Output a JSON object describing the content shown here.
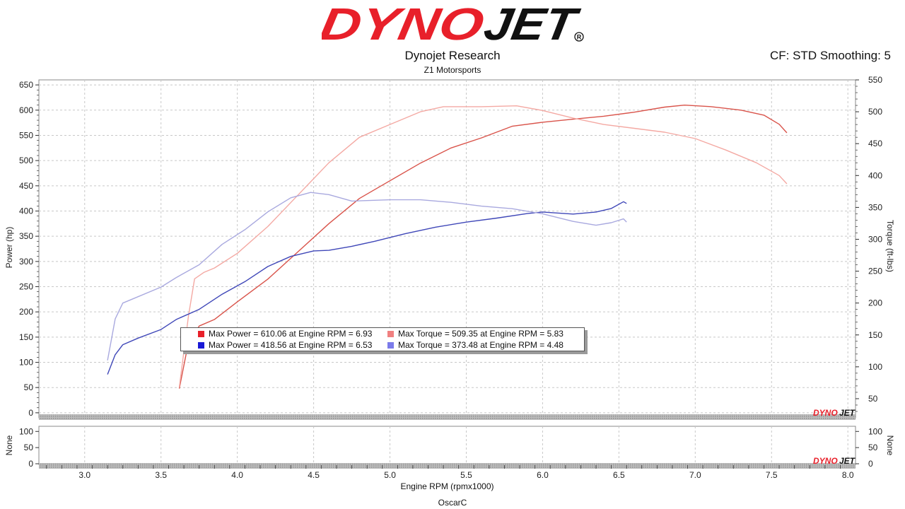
{
  "header": {
    "logo_text": "DYNOJET",
    "title": "Dynojet Research",
    "subtitle": "Z1 Motorsports",
    "correction": "CF: STD Smoothing: 5"
  },
  "footer": {
    "operator": "OscarC"
  },
  "colors": {
    "run1_power": "#d9534a",
    "run1_torque": "#f4a9a3",
    "run2_power": "#3f47b8",
    "run2_torque": "#a9a9df",
    "brand_red": "#e8202a"
  },
  "chart_data": [
    {
      "type": "line",
      "xlabel": "Engine RPM (rpmx1000)",
      "ylabel": "Power (hp)",
      "ylabel_right": "Torque (ft-lbs)",
      "xlim": [
        2.7,
        8.05
      ],
      "ylim": [
        -10,
        660
      ],
      "ylim_right": [
        20,
        550
      ],
      "x_ticks": [
        "3.0",
        "3.5",
        "4.0",
        "4.5",
        "5.0",
        "5.5",
        "6.0",
        "6.5",
        "7.0",
        "7.5",
        "8.0"
      ],
      "y_ticks": [
        "0",
        "50",
        "100",
        "150",
        "200",
        "250",
        "300",
        "350",
        "400",
        "450",
        "500",
        "550",
        "600",
        "650"
      ],
      "y_ticks_right": [
        "50",
        "100",
        "150",
        "200",
        "250",
        "300",
        "350",
        "400",
        "450",
        "500",
        "550"
      ],
      "grid": true,
      "series": [
        {
          "axis": "left",
          "x": [
            3.62,
            3.68,
            3.75,
            3.85,
            4.0,
            4.2,
            4.4,
            4.6,
            4.8,
            5.0,
            5.2,
            5.4,
            5.6,
            5.8,
            6.0,
            6.2,
            6.4,
            6.6,
            6.8,
            6.93,
            7.1,
            7.3,
            7.45,
            7.55,
            7.6
          ],
          "y": [
            48,
            140,
            172,
            185,
            220,
            265,
            320,
            375,
            425,
            460,
            495,
            525,
            545,
            568,
            576,
            582,
            588,
            596,
            606,
            610,
            607,
            600,
            590,
            572,
            555
          ]
        },
        {
          "axis": "right",
          "x": [
            3.62,
            3.68,
            3.72,
            3.78,
            3.85,
            4.0,
            4.2,
            4.4,
            4.6,
            4.8,
            5.0,
            5.2,
            5.35,
            5.6,
            5.83,
            6.0,
            6.2,
            6.4,
            6.6,
            6.8,
            7.0,
            7.2,
            7.4,
            7.55,
            7.6
          ],
          "y": [
            68,
            180,
            238,
            248,
            255,
            278,
            320,
            370,
            420,
            460,
            480,
            500,
            508,
            508,
            509.35,
            502,
            490,
            480,
            474,
            468,
            458,
            440,
            420,
            400,
            387
          ]
        },
        {
          "axis": "left",
          "x": [
            3.15,
            3.2,
            3.25,
            3.35,
            3.5,
            3.6,
            3.75,
            3.9,
            4.05,
            4.2,
            4.35,
            4.5,
            4.6,
            4.75,
            4.9,
            5.1,
            5.3,
            5.5,
            5.7,
            5.9,
            6.0,
            6.2,
            6.35,
            6.45,
            6.53,
            6.55
          ],
          "y": [
            76,
            115,
            135,
            148,
            165,
            185,
            205,
            235,
            260,
            290,
            310,
            321,
            322,
            330,
            340,
            355,
            368,
            378,
            386,
            395,
            398,
            394,
            398,
            405,
            418.56,
            415
          ]
        },
        {
          "axis": "right",
          "x": [
            3.15,
            3.2,
            3.25,
            3.3,
            3.5,
            3.6,
            3.75,
            3.9,
            4.05,
            4.2,
            4.35,
            4.48,
            4.6,
            4.75,
            5.0,
            5.2,
            5.4,
            5.6,
            5.8,
            6.0,
            6.2,
            6.35,
            6.45,
            6.53,
            6.55
          ],
          "y": [
            110,
            175,
            200,
            205,
            225,
            240,
            260,
            292,
            315,
            343,
            365,
            373.48,
            370,
            360,
            362,
            362,
            358,
            352,
            348,
            340,
            328,
            322,
            326,
            332,
            327
          ]
        }
      ]
    },
    {
      "type": "line",
      "ylabel": "None",
      "ylabel_right": "None",
      "y_ticks": [
        "0",
        "50",
        "100"
      ],
      "y_ticks_right": [
        "0",
        "50",
        "100"
      ],
      "ylim": [
        0,
        105
      ],
      "series": []
    }
  ],
  "legend": [
    {
      "label": "Max Power = 610.06 at Engine RPM = 6.93",
      "color": "#e8202a"
    },
    {
      "label": "Max Torque = 509.35 at Engine RPM = 5.83",
      "color": "#f08080"
    },
    {
      "label": "Max Power = 418.56 at Engine RPM = 6.53",
      "color": "#1a1ad6"
    },
    {
      "label": "Max Torque = 373.48 at Engine RPM = 4.48",
      "color": "#7b7bea"
    }
  ],
  "watermark": {
    "text": "DYNOJET"
  }
}
